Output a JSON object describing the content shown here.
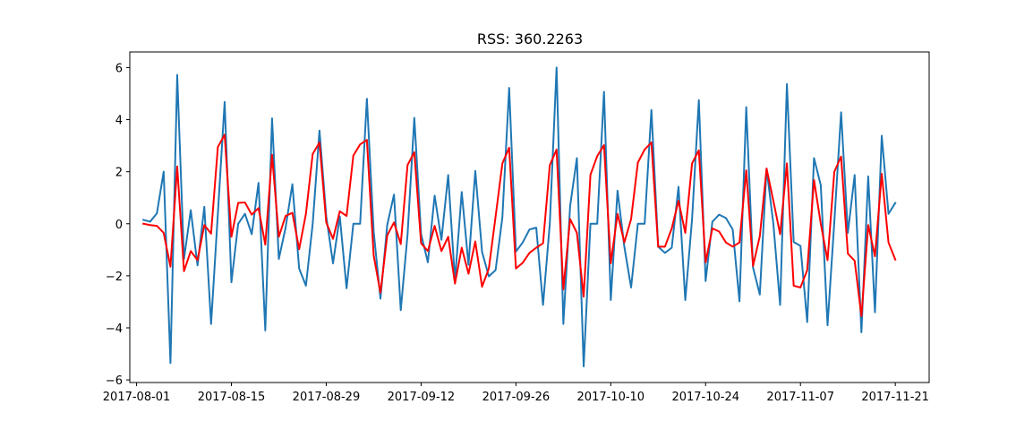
{
  "chart_data": {
    "type": "line",
    "title": "RSS: 360.2263",
    "xlabel": "",
    "ylabel": "",
    "x_start": "2017-08-02",
    "x_end": "2017-11-21",
    "xlim": [
      "2017-07-31",
      "2017-11-26"
    ],
    "ylim": [
      -6.1,
      6.6
    ],
    "grid": false,
    "x_tick_labels": [
      "2017-08-01",
      "2017-08-15",
      "2017-08-29",
      "2017-09-12",
      "2017-09-26",
      "2017-10-10",
      "2017-10-24",
      "2017-11-07",
      "2017-11-21"
    ],
    "y_ticks": [
      -6,
      -4,
      -2,
      0,
      2,
      4,
      6
    ],
    "series": [
      {
        "color": "#1f77b4",
        "values": [
          0.15,
          0.08,
          0.4,
          2.0,
          -5.35,
          5.72,
          -1.35,
          0.52,
          -1.6,
          0.65,
          -3.85,
          0.38,
          4.68,
          -2.25,
          0.0,
          0.38,
          -0.4,
          1.57,
          -4.1,
          4.05,
          -1.35,
          -0.15,
          1.52,
          -1.72,
          -2.38,
          0.0,
          3.58,
          0.28,
          -1.52,
          0.28,
          -2.48,
          0.0,
          0.0,
          4.8,
          -0.3,
          -2.88,
          -0.05,
          1.12,
          -3.32,
          -0.42,
          4.07,
          -0.4,
          -1.48,
          1.08,
          -0.62,
          1.87,
          -2.18,
          1.22,
          -1.58,
          2.03,
          -1.08,
          -2.02,
          -1.78,
          0.25,
          5.22,
          -1.07,
          -0.72,
          -0.22,
          -0.15,
          -3.12,
          0.0,
          6.0,
          -3.85,
          0.68,
          2.52,
          -5.48,
          0.0,
          0.0,
          5.07,
          -2.93,
          1.27,
          -0.88,
          -2.45,
          0.0,
          0.0,
          4.37,
          -0.88,
          -1.12,
          -0.92,
          1.42,
          -2.93,
          0.18,
          4.75,
          -2.2,
          0.08,
          0.35,
          0.22,
          -0.22,
          -2.98,
          4.48,
          -1.68,
          -2.72,
          2.12,
          0.0,
          -3.12,
          5.37,
          -0.7,
          -0.85,
          -3.78,
          2.52,
          1.48,
          -3.9,
          0.07,
          4.28,
          -0.35,
          1.87,
          -4.17,
          1.82,
          -3.4,
          3.38,
          0.38,
          0.8
        ]
      },
      {
        "color": "#ff0000",
        "values": [
          0.0,
          -0.05,
          -0.08,
          -0.35,
          -1.65,
          2.2,
          -1.82,
          -1.05,
          -1.4,
          -0.05,
          -0.38,
          2.95,
          3.42,
          -0.5,
          0.8,
          0.82,
          0.35,
          0.6,
          -0.8,
          2.65,
          -0.5,
          0.3,
          0.42,
          -0.98,
          0.38,
          2.68,
          3.12,
          0.05,
          -0.58,
          0.48,
          0.3,
          2.62,
          3.05,
          3.22,
          -1.22,
          -2.65,
          -0.45,
          0.05,
          -0.78,
          2.25,
          2.75,
          -0.75,
          -1.05,
          -0.08,
          -1.05,
          -0.5,
          -2.3,
          -0.92,
          -1.92,
          -0.68,
          -2.42,
          -1.72,
          0.28,
          2.32,
          2.92,
          -1.72,
          -1.5,
          -1.12,
          -0.92,
          -0.75,
          2.25,
          2.85,
          -2.52,
          0.18,
          -0.35,
          -2.8,
          1.88,
          2.6,
          3.02,
          -1.52,
          0.38,
          -0.72,
          0.18,
          2.35,
          2.85,
          3.12,
          -0.88,
          -0.88,
          -0.18,
          0.88,
          -0.35,
          2.32,
          2.82,
          -1.48,
          -0.18,
          -0.3,
          -0.72,
          -0.88,
          -0.72,
          2.05,
          -1.62,
          -0.48,
          2.12,
          0.88,
          -0.4,
          2.32,
          -2.38,
          -2.45,
          -1.78,
          1.68,
          0.0,
          -1.4,
          2.0,
          2.58,
          -1.15,
          -1.42,
          -3.55,
          -0.05,
          -1.25,
          1.92,
          -0.72,
          -1.38
        ]
      }
    ]
  }
}
